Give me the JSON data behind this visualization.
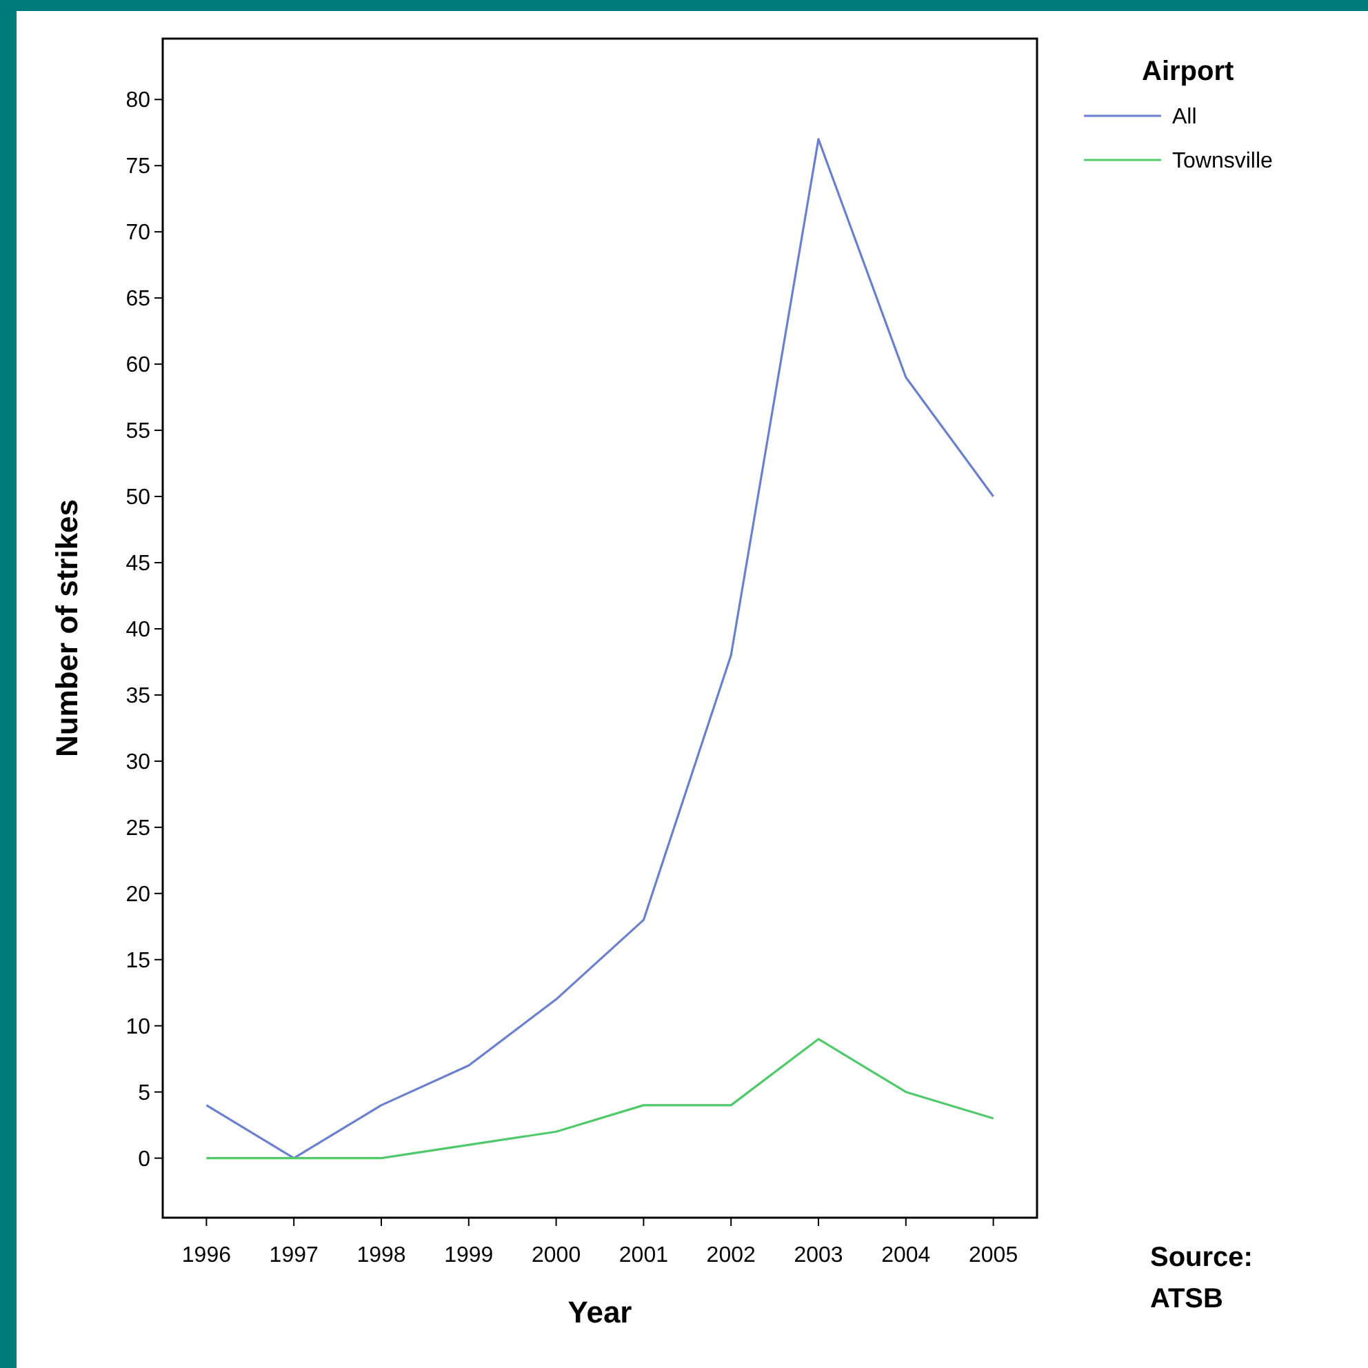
{
  "chart_data": {
    "type": "line",
    "xlabel": "Year",
    "ylabel": "Number of strikes",
    "legend_title": "Airport",
    "categories": [
      "1996",
      "1997",
      "1998",
      "1999",
      "2000",
      "2001",
      "2002",
      "2003",
      "2004",
      "2005"
    ],
    "series": [
      {
        "name": "All",
        "color": "#6b80cc",
        "values": [
          4,
          0,
          4,
          7,
          12,
          18,
          38,
          77,
          59,
          50
        ]
      },
      {
        "name": "Townsville",
        "color": "#4fc96a",
        "values": [
          0,
          0,
          0,
          1,
          2,
          4,
          4,
          9,
          5,
          3
        ]
      }
    ],
    "ylim": [
      -4.5,
      84.6
    ],
    "yticks": [
      0,
      5,
      10,
      15,
      20,
      25,
      30,
      35,
      40,
      45,
      50,
      55,
      60,
      65,
      70,
      75,
      80
    ],
    "grid": false,
    "legend": "top right",
    "marker": "none",
    "line_style": "solid",
    "annotations": [
      "Source:\nATSB"
    ]
  }
}
